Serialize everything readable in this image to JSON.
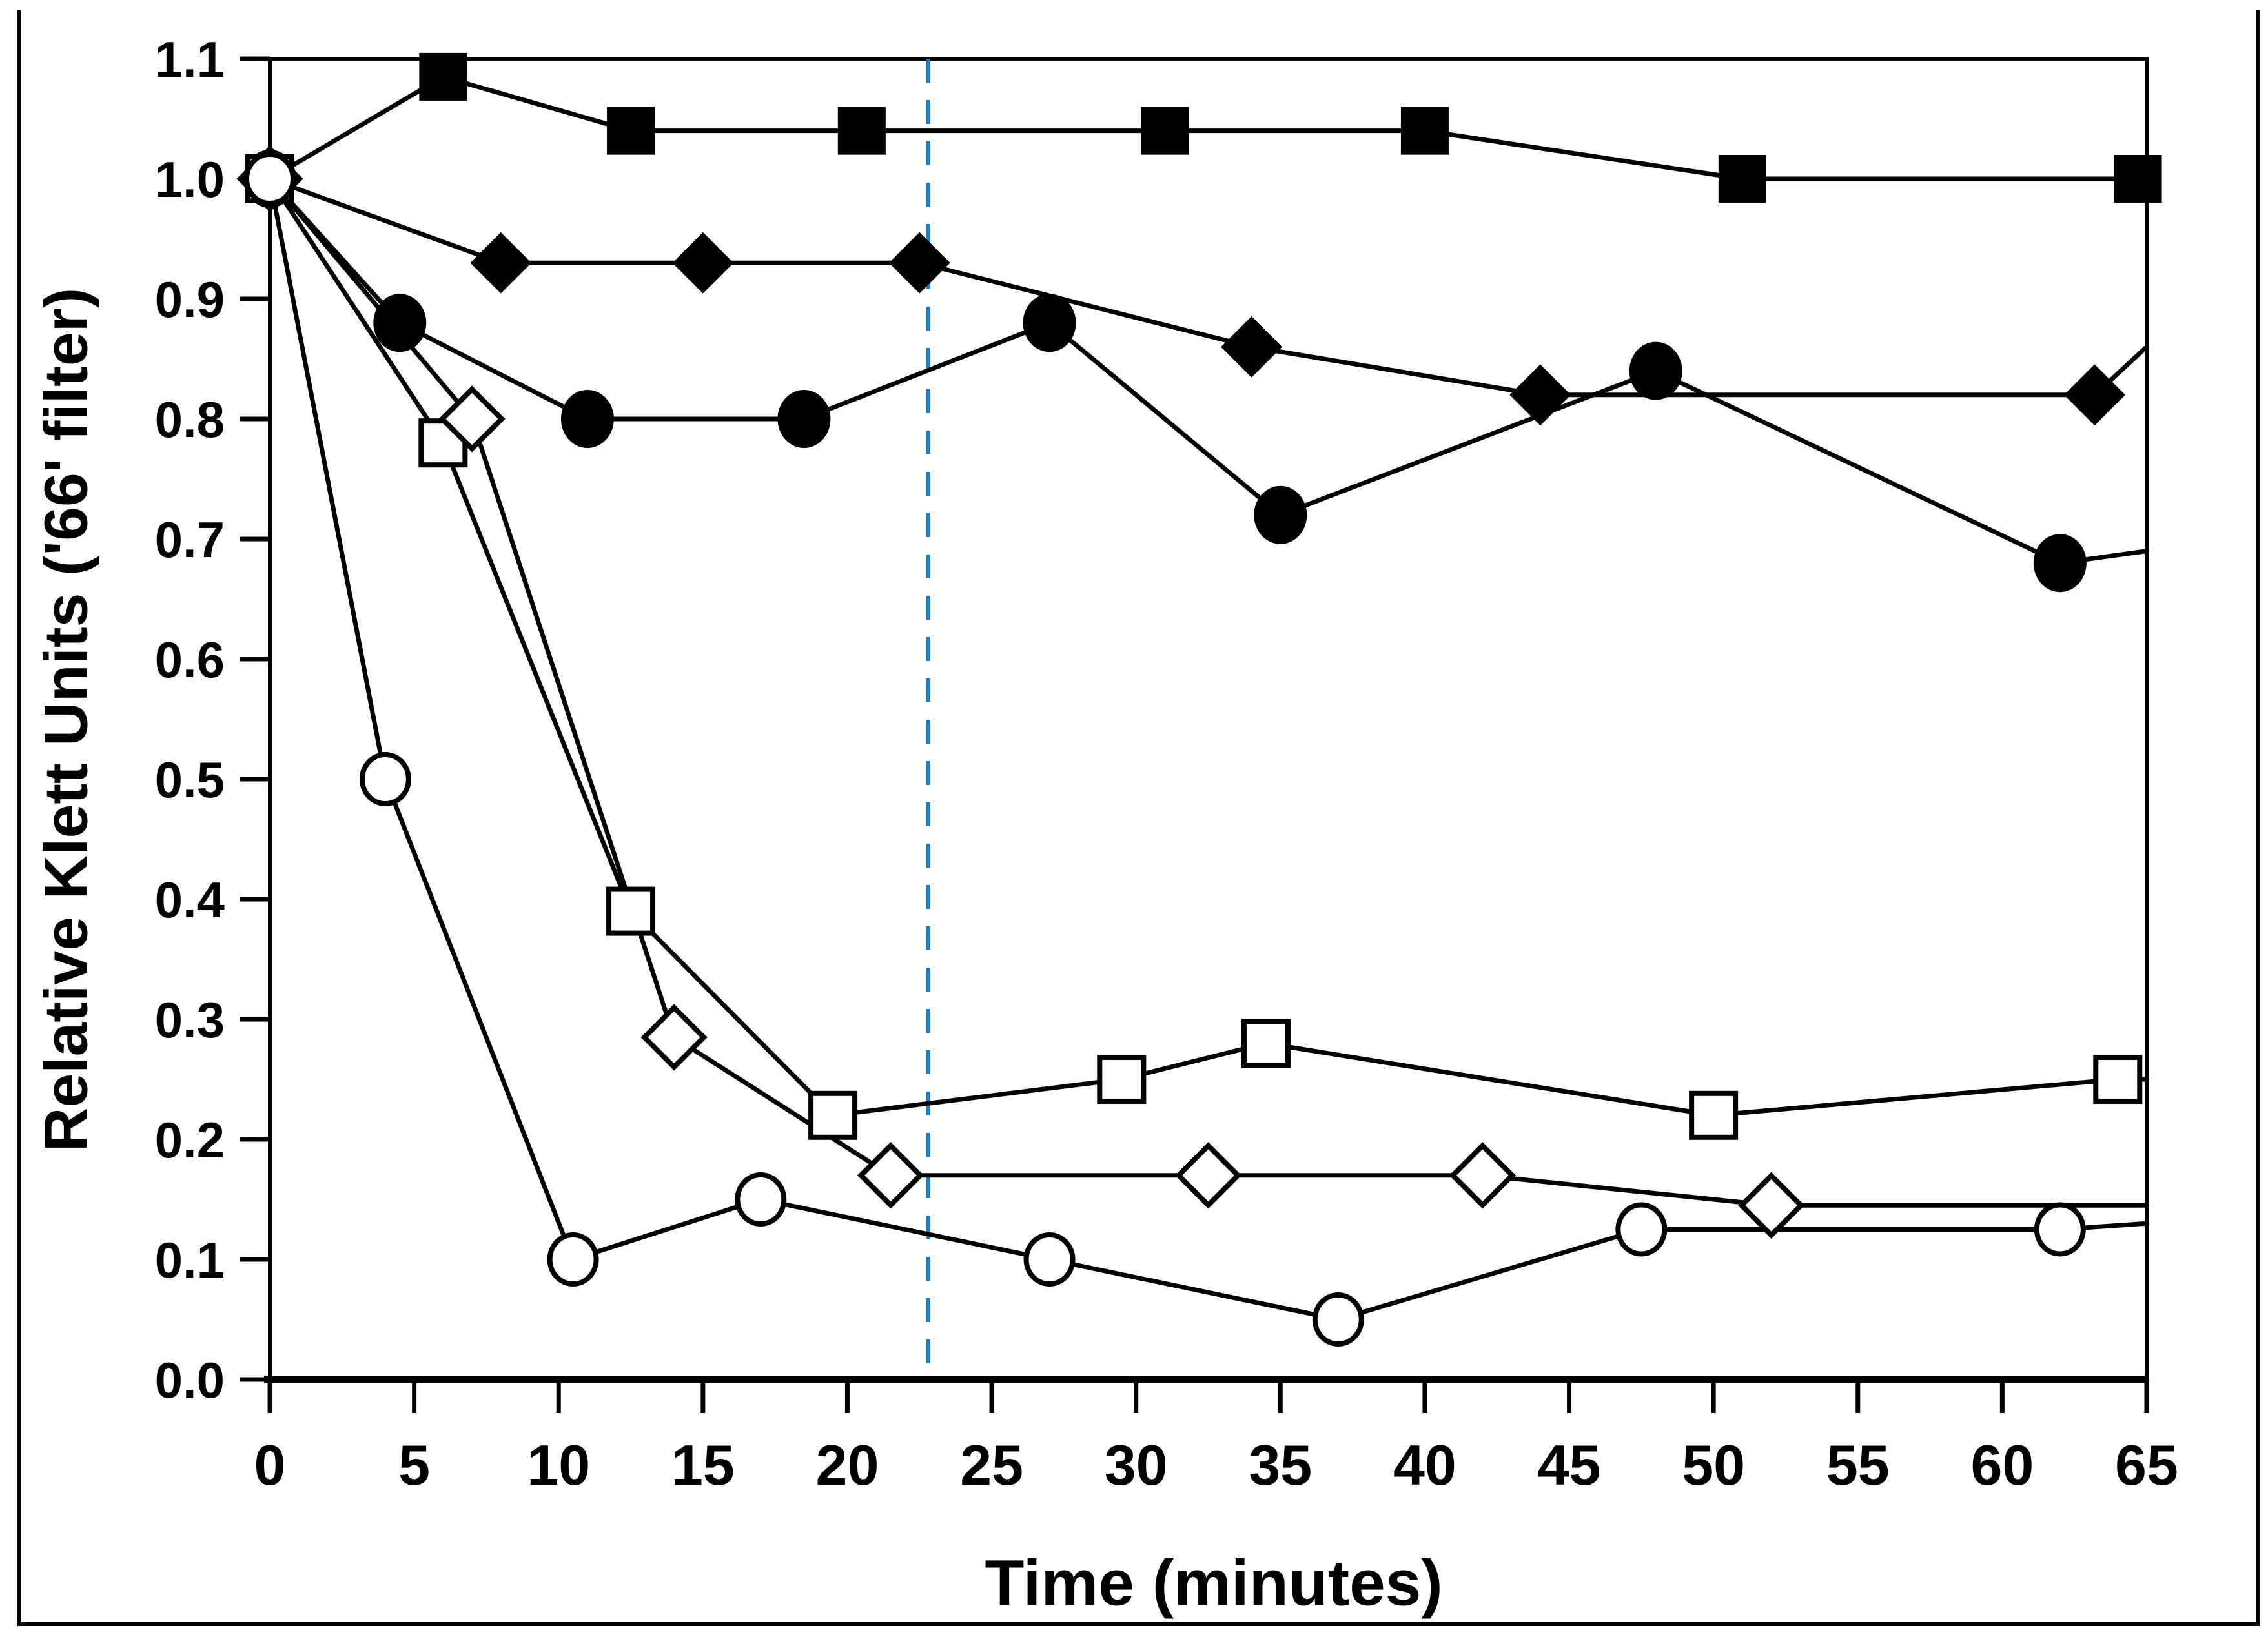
{
  "figure": {
    "background_color": "#ffffff",
    "frame_color": "#000000",
    "axis_color": "#000000",
    "tick_label_color": "#000000"
  },
  "chart_data": {
    "type": "line",
    "title": "",
    "xlabel": "Time (minutes)",
    "ylabel": "Relative Klett Units ('66' filter)",
    "xlim": [
      0,
      65
    ],
    "ylim": [
      0.0,
      1.1
    ],
    "grid": false,
    "legend_position": "none",
    "x_ticks": [
      0,
      5,
      10,
      15,
      20,
      25,
      30,
      35,
      40,
      45,
      50,
      55,
      60,
      65
    ],
    "x_tick_labels": [
      "0",
      "5",
      "10",
      "15",
      "20",
      "25",
      "30",
      "35",
      "40",
      "45",
      "50",
      "55",
      "60",
      "65"
    ],
    "y_ticks": [
      0.0,
      0.1,
      0.2,
      0.3,
      0.4,
      0.5,
      0.6,
      0.7,
      0.8,
      0.9,
      1.0,
      1.1
    ],
    "y_tick_labels": [
      "0.0",
      "0.1",
      "0.2",
      "0.3",
      "0.4",
      "0.5",
      "0.6",
      "0.7",
      "0.8",
      "0.9",
      "1.0",
      "1.1"
    ],
    "annotations": [
      {
        "type": "vline",
        "x": 22.8,
        "style": "dashed",
        "color": "#1f78c8"
      }
    ],
    "series": [
      {
        "name": "filled-square-series",
        "marker": "square",
        "fill": "filled",
        "color": "#000000",
        "points": [
          [
            0,
            1.0
          ],
          [
            6,
            1.085
          ],
          [
            12.5,
            1.04
          ],
          [
            20.5,
            1.04
          ],
          [
            31,
            1.04
          ],
          [
            40,
            1.04
          ],
          [
            51,
            1.0
          ],
          [
            64.7,
            1.0
          ]
        ],
        "line_end": [
          65,
          1.0
        ]
      },
      {
        "name": "filled-diamond-series",
        "marker": "diamond",
        "fill": "filled",
        "color": "#000000",
        "points": [
          [
            0,
            1.0
          ],
          [
            8,
            0.93
          ],
          [
            15,
            0.93
          ],
          [
            22.5,
            0.93
          ],
          [
            34,
            0.86
          ],
          [
            44,
            0.82
          ],
          [
            63.2,
            0.82
          ]
        ],
        "line_end": [
          65,
          0.86
        ]
      },
      {
        "name": "filled-circle-series",
        "marker": "circle",
        "fill": "filled",
        "color": "#000000",
        "points": [
          [
            0,
            1.0
          ],
          [
            4.5,
            0.88
          ],
          [
            11,
            0.8
          ],
          [
            18.5,
            0.8
          ],
          [
            27,
            0.88
          ],
          [
            35,
            0.72
          ],
          [
            48,
            0.84
          ],
          [
            62,
            0.68
          ]
        ],
        "line_end": [
          65,
          0.69
        ]
      },
      {
        "name": "open-square-series",
        "marker": "square",
        "fill": "open",
        "color": "#000000",
        "points": [
          [
            0,
            1.0
          ],
          [
            6,
            0.78
          ],
          [
            12.5,
            0.39
          ],
          [
            19.5,
            0.22
          ],
          [
            29.5,
            0.25
          ],
          [
            34.5,
            0.28
          ],
          [
            50,
            0.22
          ],
          [
            64,
            0.25
          ]
        ],
        "line_end": [
          65,
          0.25
        ]
      },
      {
        "name": "open-diamond-series",
        "marker": "diamond",
        "fill": "open",
        "color": "#000000",
        "points": [
          [
            0,
            1.0
          ],
          [
            7,
            0.8
          ],
          [
            14,
            0.285
          ],
          [
            21.5,
            0.17
          ],
          [
            32.5,
            0.17
          ],
          [
            42,
            0.17
          ],
          [
            52,
            0.145
          ]
        ],
        "line_end": [
          65,
          0.145
        ]
      },
      {
        "name": "open-circle-series",
        "marker": "circle",
        "fill": "open",
        "color": "#000000",
        "points": [
          [
            0,
            1.0
          ],
          [
            4,
            0.5
          ],
          [
            10.5,
            0.1
          ],
          [
            17,
            0.15
          ],
          [
            27,
            0.1
          ],
          [
            37,
            0.05
          ],
          [
            47.5,
            0.125
          ],
          [
            62,
            0.125
          ]
        ],
        "line_end": [
          65,
          0.13
        ]
      }
    ]
  }
}
